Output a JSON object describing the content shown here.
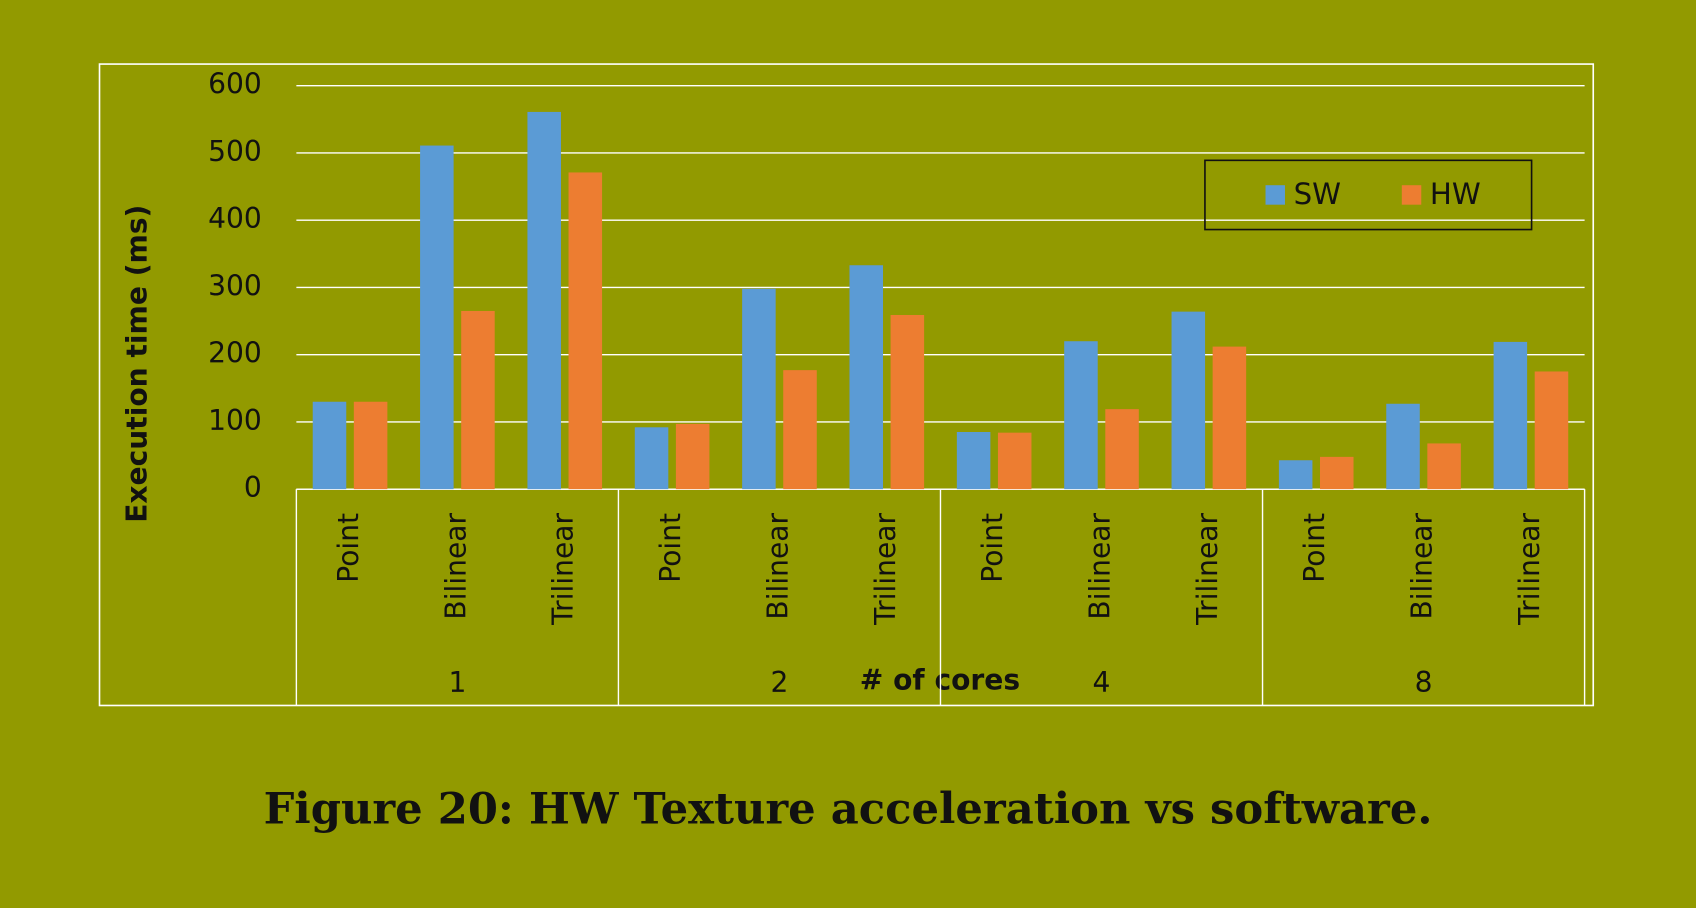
{
  "chart_data": {
    "type": "bar",
    "caption": "Figure 20: HW Texture acceleration vs software.",
    "y_label": "Execution time (ms)",
    "x_label": "# of cores",
    "categories": [
      "Point",
      "Bilinear",
      "Trilinear",
      "Point",
      "Bilinear",
      "Trilinear",
      "Point",
      "Bilinear",
      "Trilinear",
      "Point",
      "Bilinear",
      "Trilinear"
    ],
    "groups": [
      "1",
      "2",
      "4",
      "8"
    ],
    "series": [
      {
        "name": "SW",
        "color": "#5b9bd5",
        "values": [
          130,
          511,
          561,
          92,
          298,
          333,
          85,
          220,
          264,
          43,
          127,
          219
        ]
      },
      {
        "name": "HW",
        "color": "#ed7d31",
        "values": [
          130,
          265,
          471,
          97,
          177,
          259,
          84,
          119,
          212,
          48,
          68,
          175
        ]
      }
    ],
    "ylim": [
      0,
      600
    ],
    "yticks": [
      0,
      100,
      200,
      300,
      400,
      500,
      600
    ],
    "grid": true,
    "legend": "top-right"
  }
}
